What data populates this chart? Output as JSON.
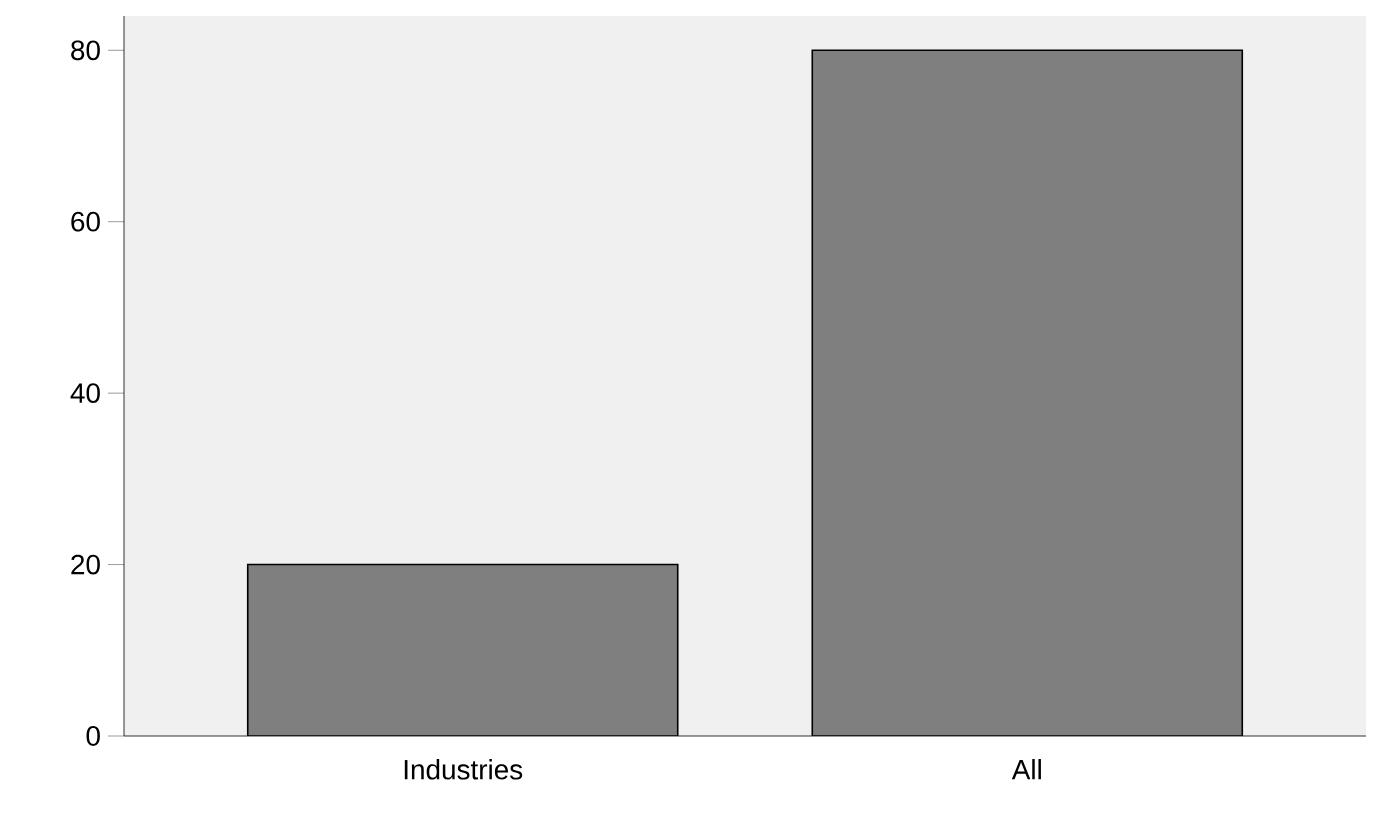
{
  "chart_data": {
    "type": "bar",
    "categories": [
      "Industries",
      "All"
    ],
    "values": [
      20,
      80
    ],
    "color": "#7f7f7f",
    "ylim": [
      0,
      84
    ],
    "yticks": [
      0,
      20,
      40,
      60,
      80
    ],
    "grid": false
  }
}
